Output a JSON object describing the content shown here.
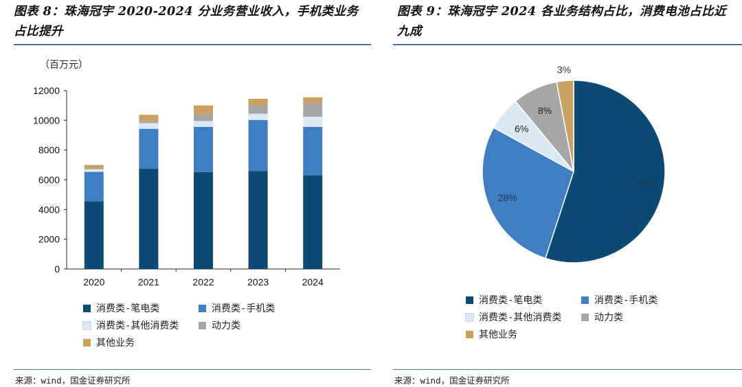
{
  "left": {
    "title": "图表 8：珠海冠宇 2020-2024 分业务营业收入，手机类业务占比提升",
    "source": "来源：wind，国金证券研究所"
  },
  "right": {
    "title": "图表 9：珠海冠宇 2024 各业务结构占比，消费电池占比近九成",
    "source": "来源：wind，国金证券研究所"
  },
  "chart_data": [
    {
      "type": "bar",
      "stacked": true,
      "unit_label": "（百万元）",
      "categories": [
        "2020",
        "2021",
        "2022",
        "2023",
        "2024"
      ],
      "ylim": [
        0,
        12000
      ],
      "yticks": [
        "0",
        "2000",
        "4000",
        "6000",
        "8000",
        "10000",
        "12000"
      ],
      "series": [
        {
          "name": "消费类-笔电类",
          "color": "#0b4a73",
          "values": [
            4550,
            6740,
            6520,
            6580,
            6310
          ]
        },
        {
          "name": "消费类-手机类",
          "color": "#3f7fc1",
          "values": [
            1980,
            2690,
            3040,
            3440,
            3250
          ]
        },
        {
          "name": "消费类-其他消费类",
          "color": "#dbe8f5",
          "values": [
            180,
            380,
            390,
            420,
            680
          ]
        },
        {
          "name": "动力类",
          "color": "#a6a6a6",
          "values": [
            50,
            120,
            440,
            570,
            910
          ]
        },
        {
          "name": "其他业务",
          "color": "#c9a25f",
          "values": [
            240,
            440,
            610,
            440,
            400
          ]
        }
      ],
      "legend_position": "bottom",
      "grid": false
    },
    {
      "type": "pie",
      "values": [
        55,
        28,
        6,
        8,
        3
      ],
      "labels": [
        "55%",
        "28%",
        "6%",
        "8%",
        "3%"
      ],
      "series_names": [
        "消费类-笔电类",
        "消费类-手机类",
        "消费类-其他消费类",
        "动力类",
        "其他业务"
      ],
      "colors": [
        "#0b4a73",
        "#3f7fc1",
        "#dbe8f5",
        "#a6a6a6",
        "#c9a25f"
      ],
      "legend_position": "bottom"
    }
  ]
}
